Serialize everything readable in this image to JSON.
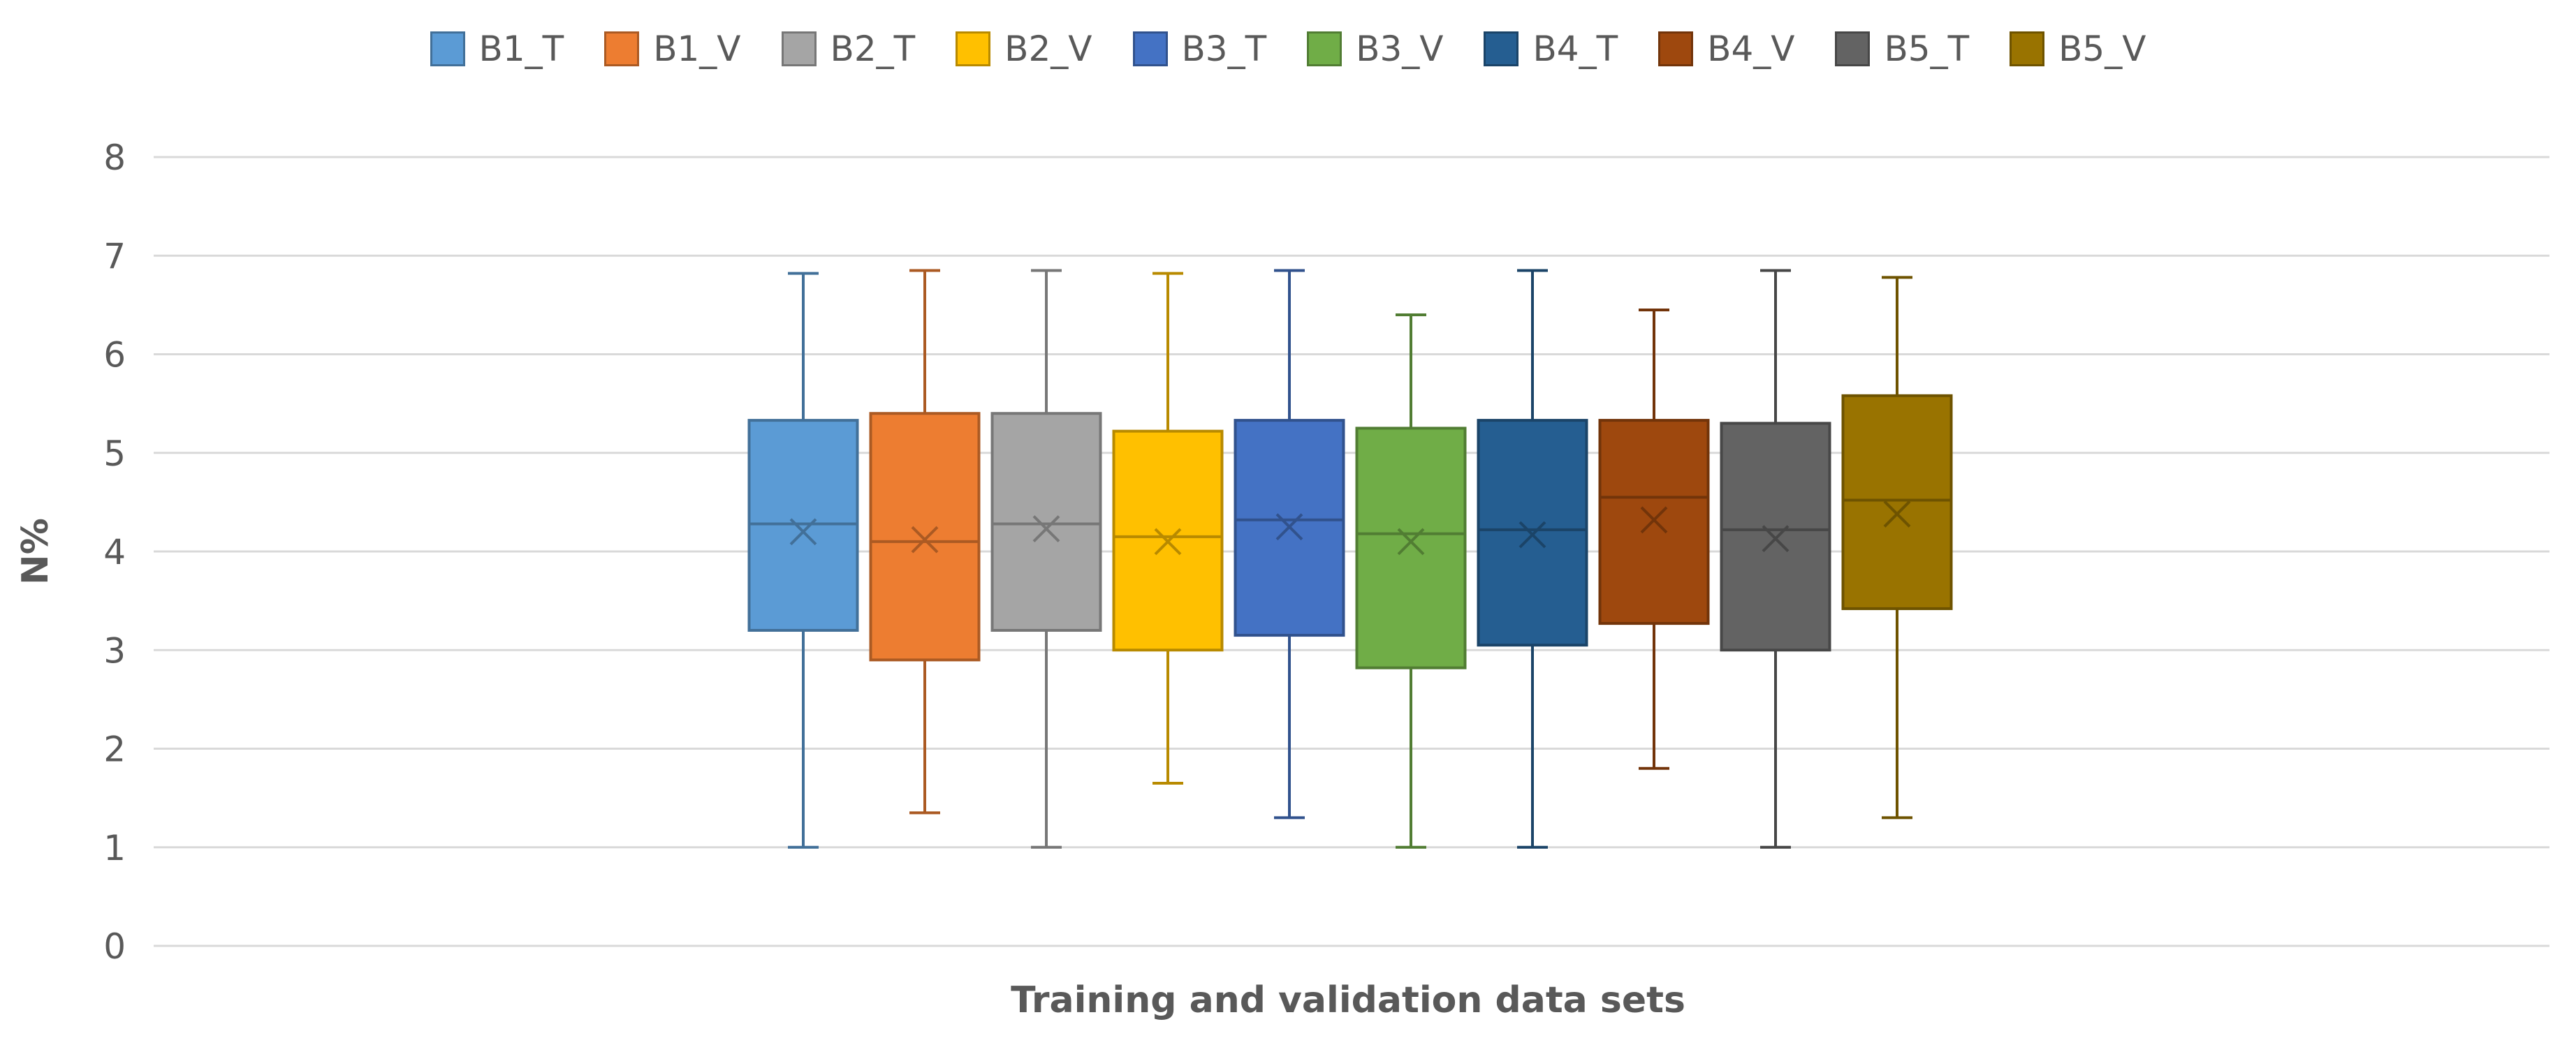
{
  "chart_data": {
    "type": "boxplot",
    "title": "",
    "xlabel": "Training and validation data sets",
    "ylabel": "N%",
    "ylim": [
      0,
      8
    ],
    "yticks": [
      "0",
      "1",
      "2",
      "3",
      "4",
      "5",
      "6",
      "7",
      "8"
    ],
    "grid": true,
    "legend_position": "top",
    "series": [
      {
        "name": "B1_T",
        "color": "#5B9BD5",
        "min": 1.0,
        "q1": 3.2,
        "median": 4.28,
        "q3": 5.33,
        "max": 6.82,
        "mean": 4.2
      },
      {
        "name": "B1_V",
        "color": "#ED7D31",
        "min": 1.35,
        "q1": 2.9,
        "median": 4.1,
        "q3": 5.4,
        "max": 6.85,
        "mean": 4.12
      },
      {
        "name": "B2_T",
        "color": "#A5A5A5",
        "min": 1.0,
        "q1": 3.2,
        "median": 4.28,
        "q3": 5.4,
        "max": 6.85,
        "mean": 4.23
      },
      {
        "name": "B2_V",
        "color": "#FFC000",
        "min": 1.65,
        "q1": 3.0,
        "median": 4.15,
        "q3": 5.22,
        "max": 6.82,
        "mean": 4.1
      },
      {
        "name": "B3_T",
        "color": "#4472C4",
        "min": 1.3,
        "q1": 3.15,
        "median": 4.32,
        "q3": 5.33,
        "max": 6.85,
        "mean": 4.25
      },
      {
        "name": "B3_V",
        "color": "#70AD47",
        "min": 1.0,
        "q1": 2.82,
        "median": 4.18,
        "q3": 5.25,
        "max": 6.4,
        "mean": 4.1
      },
      {
        "name": "B4_T",
        "color": "#255E91",
        "min": 1.0,
        "q1": 3.05,
        "median": 4.22,
        "q3": 5.33,
        "max": 6.85,
        "mean": 4.17
      },
      {
        "name": "B4_V",
        "color": "#9E480E",
        "min": 1.8,
        "q1": 3.27,
        "median": 4.55,
        "q3": 5.33,
        "max": 6.45,
        "mean": 4.32
      },
      {
        "name": "B5_T",
        "color": "#636363",
        "min": 1.0,
        "q1": 3.0,
        "median": 4.22,
        "q3": 5.3,
        "max": 6.85,
        "mean": 4.13
      },
      {
        "name": "B5_V",
        "color": "#997300",
        "min": 1.3,
        "q1": 3.42,
        "median": 4.52,
        "q3": 5.58,
        "max": 6.78,
        "mean": 4.38
      }
    ]
  }
}
